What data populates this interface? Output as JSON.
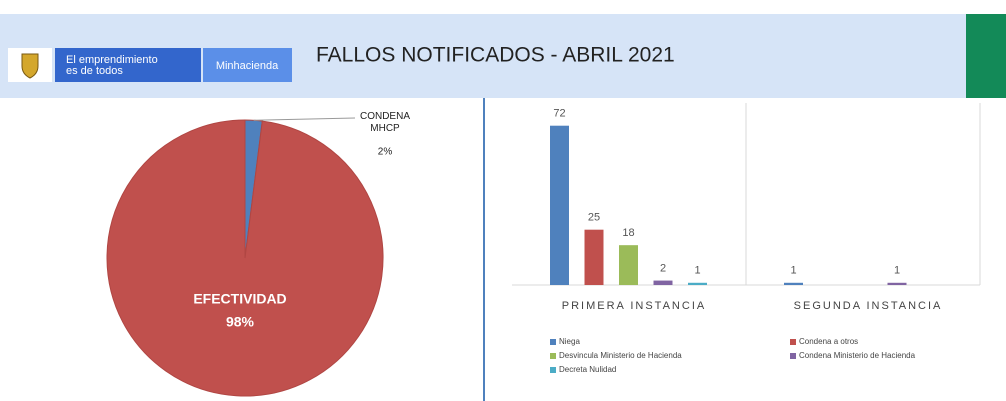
{
  "header": {
    "brand_lines": [
      "El emprendimiento",
      "es de todos"
    ],
    "ministry": "Minhacienda",
    "title": "FALLOS NOTIFICADOS - ABRIL 2021"
  },
  "chart_data": [
    {
      "type": "pie",
      "categories": [
        "CONDENA MHCP",
        "EFECTIVIDAD"
      ],
      "values": [
        2,
        98
      ],
      "value_labels": [
        "2%",
        "98%"
      ],
      "colors": [
        "#4f81bd",
        "#c0504d"
      ]
    },
    {
      "type": "bar",
      "categories": [
        "PRIMERA INSTANCIA",
        "SEGUNDA INSTANCIA"
      ],
      "ylim": [
        0,
        80
      ],
      "series": [
        {
          "name": "Niega",
          "color": "#4f81bd",
          "values": [
            72,
            1
          ]
        },
        {
          "name": "Condena a otros",
          "color": "#c0504d",
          "values": [
            25,
            null
          ]
        },
        {
          "name": "Desvincula Ministerio de Hacienda",
          "color": "#9bbb59",
          "values": [
            18,
            null
          ]
        },
        {
          "name": "Condena Ministerio de Hacienda",
          "color": "#8064a2",
          "values": [
            2,
            1
          ]
        },
        {
          "name": "Decreta Nulidad",
          "color": "#4bacc6",
          "values": [
            1,
            null
          ]
        }
      ]
    }
  ]
}
